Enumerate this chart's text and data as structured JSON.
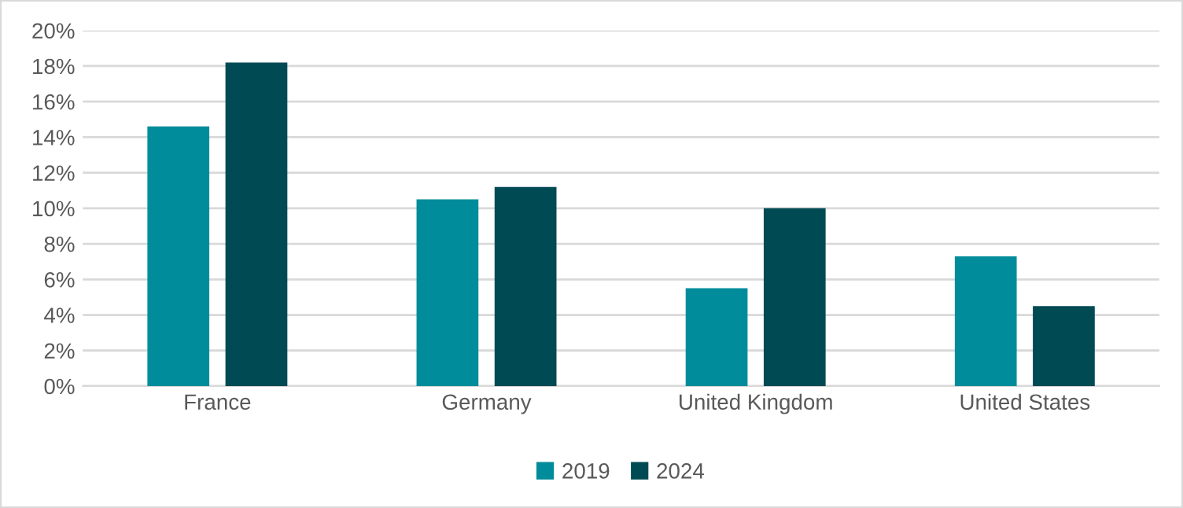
{
  "chart_data": {
    "type": "bar",
    "categories": [
      "France",
      "Germany",
      "United Kingdom",
      "United States"
    ],
    "series": [
      {
        "name": "2019",
        "color": "#008c9a",
        "values": [
          14.6,
          10.5,
          5.5,
          7.3
        ]
      },
      {
        "name": "2024",
        "color": "#004a54",
        "values": [
          18.2,
          11.2,
          10.0,
          4.5
        ]
      }
    ],
    "ylim": [
      0,
      20
    ],
    "yticks": [
      {
        "value": 0,
        "label": "0%"
      },
      {
        "value": 2,
        "label": "2%"
      },
      {
        "value": 4,
        "label": "4%"
      },
      {
        "value": 6,
        "label": "6%"
      },
      {
        "value": 8,
        "label": "8%"
      },
      {
        "value": 10,
        "label": "10%"
      },
      {
        "value": 12,
        "label": "12%"
      },
      {
        "value": 14,
        "label": "14%"
      },
      {
        "value": 16,
        "label": "16%"
      },
      {
        "value": 18,
        "label": "18%"
      },
      {
        "value": 20,
        "label": "20%"
      }
    ],
    "grid": "y",
    "legend": "bottom"
  }
}
